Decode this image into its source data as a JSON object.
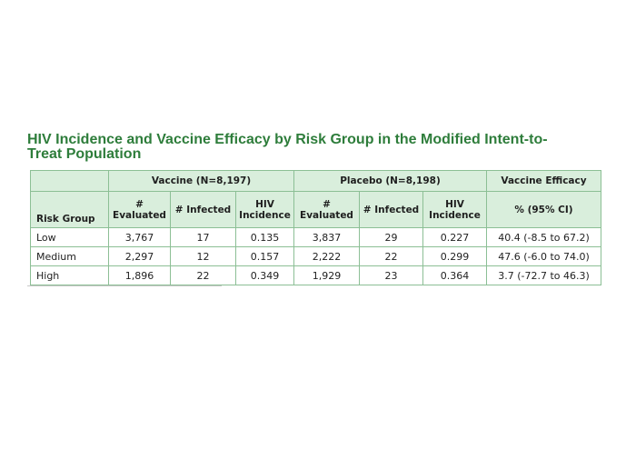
{
  "title_line1": "HIV Incidence and Vaccine Efficacy by Risk Group in the Modified Intent-to-",
  "title_line2": "Treat Population",
  "chart_data": {
    "type": "table",
    "groups": [
      {
        "label": "Vaccine (N=8,197)"
      },
      {
        "label": "Placebo (N=8,198)"
      },
      {
        "label": "Vaccine Efficacy"
      }
    ],
    "columns": {
      "risk_group": "Risk Group",
      "v_eval": "# Evaluated",
      "v_inf": "# Infected",
      "v_inc": "HIV Incidence",
      "p_eval": "# Evaluated",
      "p_inf": "# Infected",
      "p_inc": "HIV Incidence",
      "ve": "% (95% CI)"
    },
    "rows": [
      {
        "risk_group": "Low",
        "v_eval": "3,767",
        "v_inf": "17",
        "v_inc": "0.135",
        "p_eval": "3,837",
        "p_inf": "29",
        "p_inc": "0.227",
        "ve": "40.4 (-8.5 to 67.2)"
      },
      {
        "risk_group": "Medium",
        "v_eval": "2,297",
        "v_inf": "12",
        "v_inc": "0.157",
        "p_eval": "2,222",
        "p_inf": "22",
        "p_inc": "0.299",
        "ve": "47.6 (-6.0 to 74.0)"
      },
      {
        "risk_group": "High",
        "v_eval": "1,896",
        "v_inf": "22",
        "v_inc": "0.349",
        "p_eval": "1,929",
        "p_inf": "23",
        "p_inc": "0.364",
        "ve": "3.7 (-72.7 to 46.3)"
      }
    ]
  }
}
